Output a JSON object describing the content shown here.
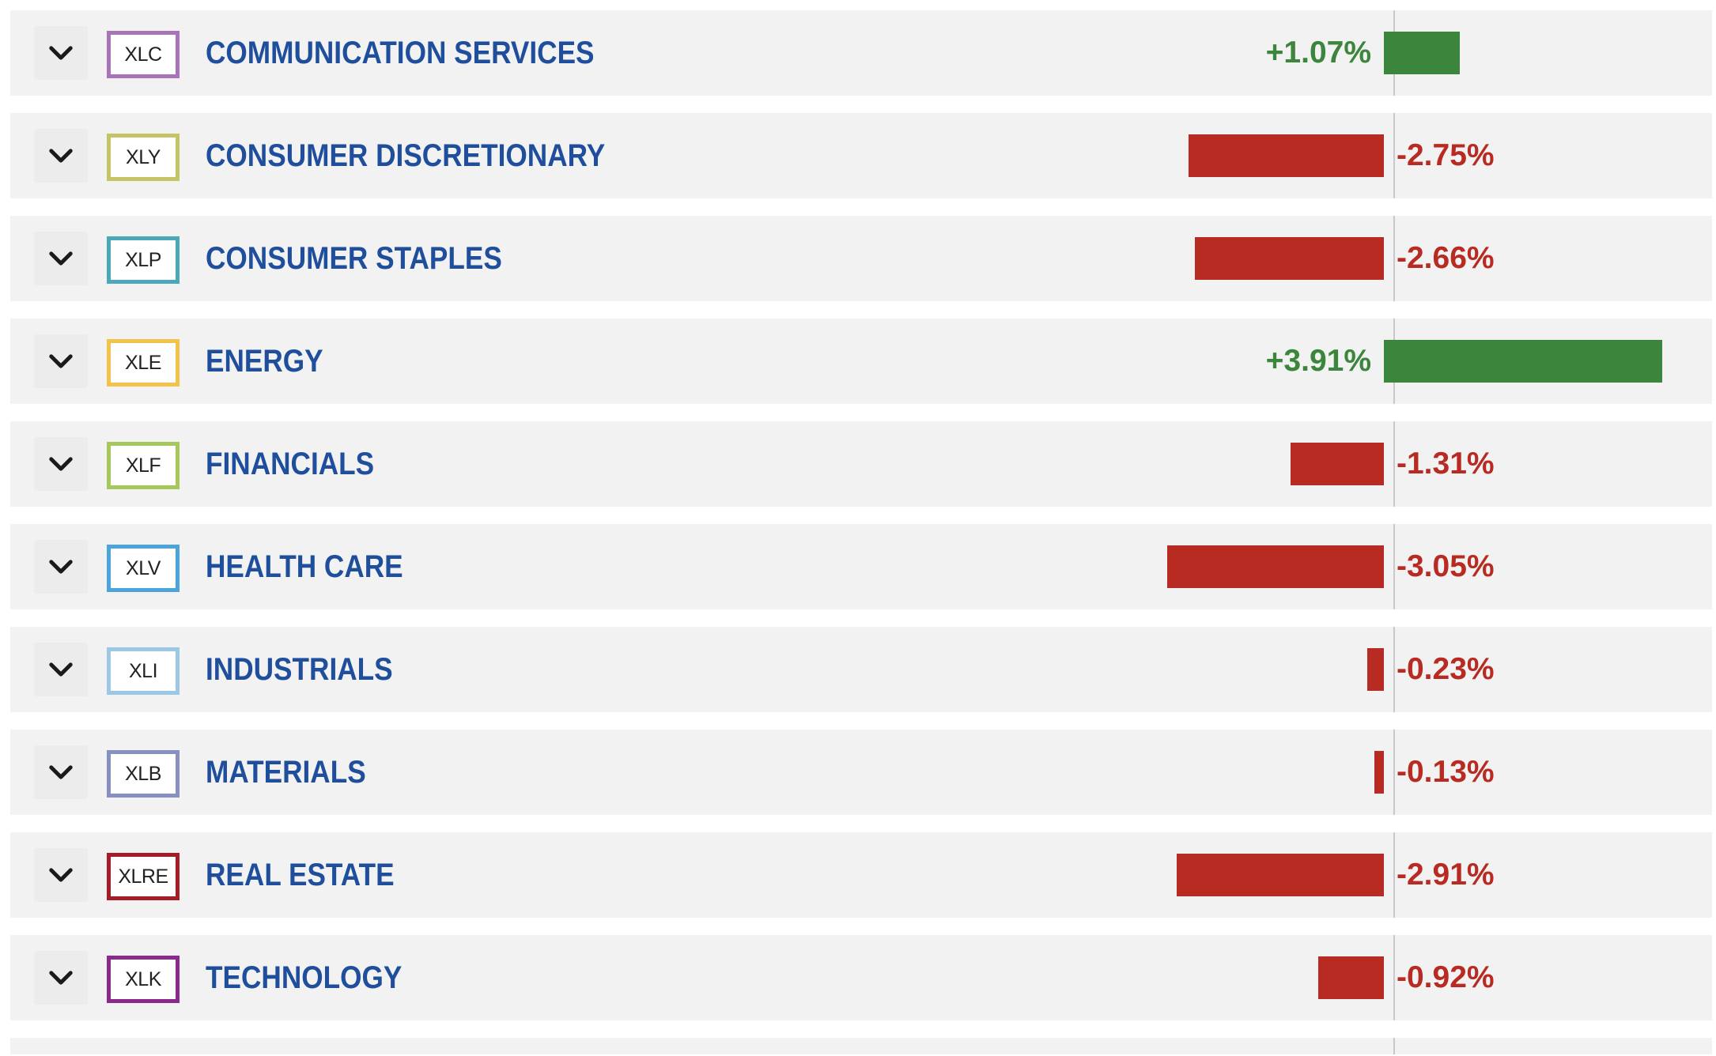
{
  "colors": {
    "positive": "#3c853c",
    "negative": "#b72b22",
    "sector_name": "#1f4e9c",
    "row_background": "#f2f2f2"
  },
  "scale_max_abs_pct": 4.0,
  "sectors": [
    {
      "ticker": "XLC",
      "name": "COMMUNICATION SERVICES",
      "change_pct": 1.07,
      "change_text": "+1.07%",
      "badge_color": "#a874b8",
      "expand_icon": "chevron-down-icon"
    },
    {
      "ticker": "XLY",
      "name": "CONSUMER DISCRETIONARY",
      "change_pct": -2.75,
      "change_text": "-2.75%",
      "badge_color": "#c4c466",
      "expand_icon": "chevron-down-icon"
    },
    {
      "ticker": "XLP",
      "name": "CONSUMER STAPLES",
      "change_pct": -2.66,
      "change_text": "-2.66%",
      "badge_color": "#4aa8b8",
      "expand_icon": "chevron-down-icon"
    },
    {
      "ticker": "XLE",
      "name": "ENERGY",
      "change_pct": 3.91,
      "change_text": "+3.91%",
      "badge_color": "#f2c24a",
      "expand_icon": "chevron-down-icon"
    },
    {
      "ticker": "XLF",
      "name": "FINANCIALS",
      "change_pct": -1.31,
      "change_text": "-1.31%",
      "badge_color": "#a6c85a",
      "expand_icon": "chevron-down-icon"
    },
    {
      "ticker": "XLV",
      "name": "HEALTH CARE",
      "change_pct": -3.05,
      "change_text": "-3.05%",
      "badge_color": "#4ba4dc",
      "expand_icon": "chevron-down-icon"
    },
    {
      "ticker": "XLI",
      "name": "INDUSTRIALS",
      "change_pct": -0.23,
      "change_text": "-0.23%",
      "badge_color": "#9cc8e6",
      "expand_icon": "chevron-down-icon"
    },
    {
      "ticker": "XLB",
      "name": "MATERIALS",
      "change_pct": -0.13,
      "change_text": "-0.13%",
      "badge_color": "#8890c0",
      "expand_icon": "chevron-down-icon"
    },
    {
      "ticker": "XLRE",
      "name": "REAL ESTATE",
      "change_pct": -2.91,
      "change_text": "-2.91%",
      "badge_color": "#a41c28",
      "expand_icon": "chevron-down-icon"
    },
    {
      "ticker": "XLK",
      "name": "TECHNOLOGY",
      "change_pct": -0.92,
      "change_text": "-0.92%",
      "badge_color": "#8a2a8c",
      "expand_icon": "chevron-down-icon"
    }
  ]
}
